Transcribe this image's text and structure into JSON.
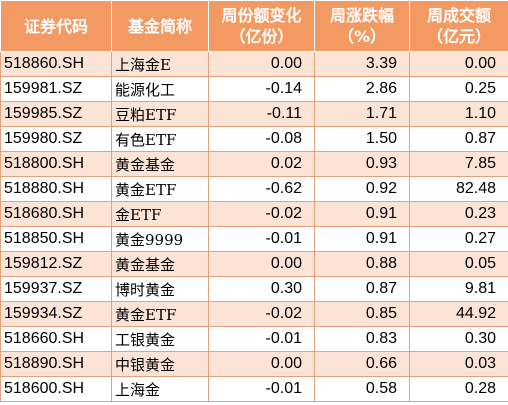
{
  "headers": [
    {
      "line1": "证券代码",
      "line2": ""
    },
    {
      "line1": "基金简称",
      "line2": ""
    },
    {
      "line1": "周份额变化",
      "line2": "（亿份）"
    },
    {
      "line1": "周涨跌幅",
      "line2": "（%）"
    },
    {
      "line1": "周成交额",
      "line2": "（亿元）"
    }
  ],
  "rows": [
    {
      "code": "518860.SH",
      "name": "上海金E",
      "share_change": "0.00",
      "weekly_change": "3.39",
      "turnover": "0.00"
    },
    {
      "code": "159981.SZ",
      "name": "能源化工",
      "share_change": "-0.14",
      "weekly_change": "2.86",
      "turnover": "0.25"
    },
    {
      "code": "159985.SZ",
      "name": "豆粕ETF",
      "share_change": "-0.11",
      "weekly_change": "1.71",
      "turnover": "1.10"
    },
    {
      "code": "159980.SZ",
      "name": "有色ETF",
      "share_change": "-0.08",
      "weekly_change": "1.50",
      "turnover": "0.87"
    },
    {
      "code": "518800.SH",
      "name": "黄金基金",
      "share_change": "0.02",
      "weekly_change": "0.93",
      "turnover": "7.85"
    },
    {
      "code": "518880.SH",
      "name": "黄金ETF",
      "share_change": "-0.62",
      "weekly_change": "0.92",
      "turnover": "82.48"
    },
    {
      "code": "518680.SH",
      "name": "金ETF",
      "share_change": "-0.02",
      "weekly_change": "0.91",
      "turnover": "0.23"
    },
    {
      "code": "518850.SH",
      "name": "黄金9999",
      "share_change": "-0.01",
      "weekly_change": "0.91",
      "turnover": "0.27"
    },
    {
      "code": "159812.SZ",
      "name": "黄金基金",
      "share_change": "0.00",
      "weekly_change": "0.88",
      "turnover": "0.05"
    },
    {
      "code": "159937.SZ",
      "name": "博时黄金",
      "share_change": "0.30",
      "weekly_change": "0.87",
      "turnover": "9.81"
    },
    {
      "code": "159934.SZ",
      "name": "黄金ETF",
      "share_change": "-0.02",
      "weekly_change": "0.85",
      "turnover": "44.92"
    },
    {
      "code": "518660.SH",
      "name": "工银黄金",
      "share_change": "-0.01",
      "weekly_change": "0.83",
      "turnover": "0.30"
    },
    {
      "code": "518890.SH",
      "name": "中银黄金",
      "share_change": "0.00",
      "weekly_change": "0.66",
      "turnover": "0.03"
    },
    {
      "code": "518600.SH",
      "name": "上海金",
      "share_change": "-0.01",
      "weekly_change": "0.58",
      "turnover": "0.28"
    }
  ],
  "colors": {
    "header_bg": "#f39a63",
    "stripe_bg": "#fbe4d6",
    "border": "#e2a27c"
  }
}
